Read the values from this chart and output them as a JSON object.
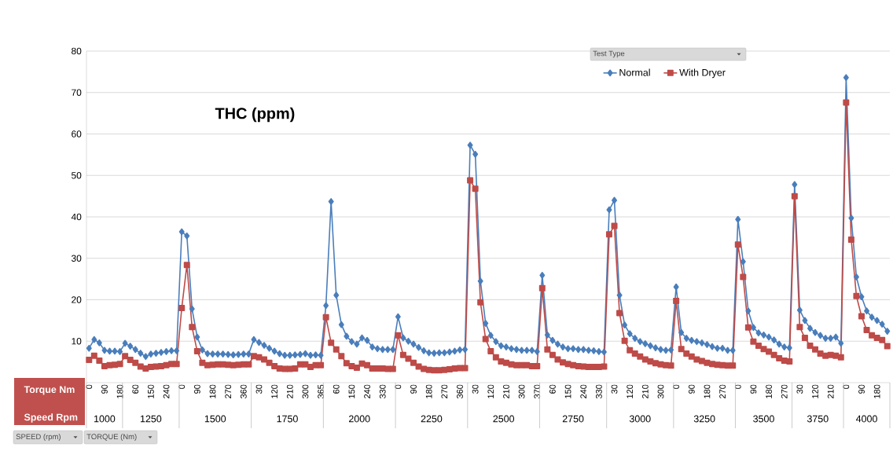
{
  "chart_data": {
    "type": "line",
    "title": "THC (ppm)",
    "legend_title": "Test Type",
    "categories": [
      "0",
      null,
      null,
      "90",
      null,
      null,
      "180",
      null,
      null,
      "60",
      null,
      null,
      "150",
      null,
      null,
      "240",
      null,
      null,
      "0",
      null,
      null,
      "90",
      null,
      null,
      "180",
      null,
      null,
      "270",
      null,
      null,
      "360",
      null,
      null,
      "30",
      null,
      null,
      "120",
      null,
      null,
      "210",
      null,
      null,
      "300",
      null,
      null,
      "365",
      null,
      null,
      "60",
      null,
      null,
      "150",
      null,
      null,
      "240",
      null,
      null,
      "330",
      null,
      null,
      "0",
      null,
      null,
      "90",
      null,
      null,
      "180",
      null,
      null,
      "270",
      null,
      null,
      "360",
      null,
      null,
      "30",
      null,
      null,
      "120",
      null,
      null,
      "210",
      null,
      null,
      "300",
      null,
      null,
      "370",
      null,
      null,
      "60",
      null,
      null,
      "150",
      null,
      null,
      "240",
      null,
      null,
      "330",
      null,
      null,
      "30",
      null,
      null,
      "120",
      null,
      null,
      "210",
      null,
      null,
      "300",
      null,
      null,
      "0",
      null,
      null,
      "90",
      null,
      null,
      "180",
      null,
      null,
      "270",
      null,
      null,
      "0",
      null,
      null,
      "90",
      null,
      null,
      "180",
      null,
      null,
      "270",
      null,
      null,
      "30",
      null,
      null,
      "120",
      null,
      null,
      "210",
      null,
      null,
      "0",
      null,
      null,
      "90",
      null,
      null,
      "180",
      null,
      null
    ],
    "series": [
      {
        "name": "Normal",
        "color": "#4a7ebb",
        "marker": "diamond",
        "values": [
          8.3,
          10.4,
          9.6,
          7.8,
          7.6,
          7.6,
          7.5,
          9.5,
          8.8,
          8.0,
          7.1,
          6.3,
          6.9,
          7.1,
          7.3,
          7.5,
          7.7,
          7.7,
          36.4,
          35.4,
          17.8,
          11.0,
          7.9,
          7.0,
          6.9,
          6.9,
          6.9,
          6.8,
          6.7,
          6.8,
          6.9,
          6.9,
          10.4,
          9.7,
          9.0,
          8.3,
          7.6,
          7.0,
          6.6,
          6.6,
          6.7,
          6.8,
          7.0,
          6.6,
          6.7,
          6.6,
          18.6,
          43.7,
          21.1,
          14.0,
          11.2,
          9.9,
          9.3,
          10.8,
          10.2,
          8.6,
          8.2,
          8.0,
          8.0,
          8.0,
          15.9,
          10.8,
          10.0,
          9.3,
          8.5,
          7.7,
          7.2,
          7.1,
          7.2,
          7.2,
          7.4,
          7.6,
          7.9,
          8.0,
          57.3,
          55.1,
          24.5,
          14.3,
          11.4,
          9.9,
          8.9,
          8.6,
          8.2,
          8.0,
          7.8,
          7.8,
          7.8,
          7.5,
          25.9,
          11.5,
          10.2,
          9.3,
          8.6,
          8.2,
          8.2,
          8.0,
          8.0,
          7.8,
          7.7,
          7.5,
          7.4,
          41.7,
          44.0,
          21.1,
          13.9,
          11.8,
          10.7,
          9.9,
          9.4,
          8.9,
          8.4,
          8.0,
          7.8,
          7.9,
          23.1,
          12.1,
          10.7,
          10.2,
          9.9,
          9.6,
          9.2,
          8.7,
          8.3,
          8.3,
          7.8,
          7.8,
          39.4,
          29.2,
          17.3,
          13.3,
          12.0,
          11.5,
          11.0,
          10.3,
          9.3,
          8.6,
          8.4,
          47.8,
          17.5,
          15.0,
          13.1,
          12.1,
          11.4,
          10.7,
          10.7,
          11.0,
          9.5,
          73.6,
          39.7,
          25.5,
          20.7,
          17.3,
          15.8,
          15.0,
          14.1,
          12.4
        ]
      },
      {
        "name": "With Dryer",
        "color": "#be4b48",
        "marker": "square",
        "values": [
          5.5,
          6.5,
          5.3,
          4.0,
          4.2,
          4.3,
          4.5,
          6.4,
          5.5,
          4.8,
          3.9,
          3.4,
          3.8,
          3.9,
          4.0,
          4.2,
          4.5,
          4.5,
          18.0,
          28.4,
          13.4,
          7.6,
          4.8,
          4.2,
          4.3,
          4.4,
          4.4,
          4.3,
          4.2,
          4.3,
          4.4,
          4.4,
          6.4,
          6.1,
          5.6,
          4.8,
          4.0,
          3.4,
          3.3,
          3.3,
          3.4,
          4.4,
          4.4,
          3.8,
          4.2,
          4.2,
          15.8,
          9.6,
          8.0,
          6.4,
          4.7,
          4.0,
          3.6,
          4.6,
          4.2,
          3.4,
          3.4,
          3.4,
          3.3,
          3.3,
          11.4,
          6.7,
          5.8,
          4.8,
          3.9,
          3.3,
          3.1,
          3.0,
          3.0,
          3.1,
          3.2,
          3.4,
          3.5,
          3.5,
          48.8,
          46.8,
          19.4,
          10.5,
          7.6,
          6.1,
          5.1,
          4.8,
          4.4,
          4.2,
          4.2,
          4.2,
          4.0,
          4.0,
          22.8,
          8.0,
          6.7,
          5.6,
          4.9,
          4.5,
          4.2,
          4.0,
          3.9,
          3.8,
          3.8,
          3.8,
          3.9,
          35.8,
          37.8,
          16.8,
          10.1,
          7.8,
          7.0,
          6.3,
          5.6,
          5.1,
          4.7,
          4.4,
          4.2,
          4.1,
          19.7,
          8.1,
          7.0,
          6.3,
          5.6,
          5.2,
          4.8,
          4.5,
          4.3,
          4.2,
          4.1,
          4.1,
          33.3,
          25.5,
          13.3,
          9.9,
          8.9,
          8.1,
          7.5,
          6.7,
          5.9,
          5.3,
          5.1,
          45.0,
          13.4,
          10.8,
          8.9,
          8.0,
          7.0,
          6.5,
          6.7,
          6.5,
          6.1,
          67.6,
          34.5,
          20.9,
          16.0,
          12.7,
          11.4,
          10.8,
          10.3,
          8.8
        ]
      }
    ],
    "ylim": [
      0,
      80
    ],
    "yticks": [
      10,
      20,
      30,
      40,
      50,
      60,
      70,
      80
    ],
    "grid": "y",
    "legend": "top right",
    "annotations": [
      "1000",
      "1250",
      "1500",
      "1750",
      "2000",
      "2250",
      "2500",
      "2750",
      "3000",
      "3250",
      "3500",
      "3750",
      "4000",
      "Torque Nm",
      "Speed Rpm",
      "SPEED   (rpm)",
      "TORQUE   (Nm)"
    ]
  }
}
